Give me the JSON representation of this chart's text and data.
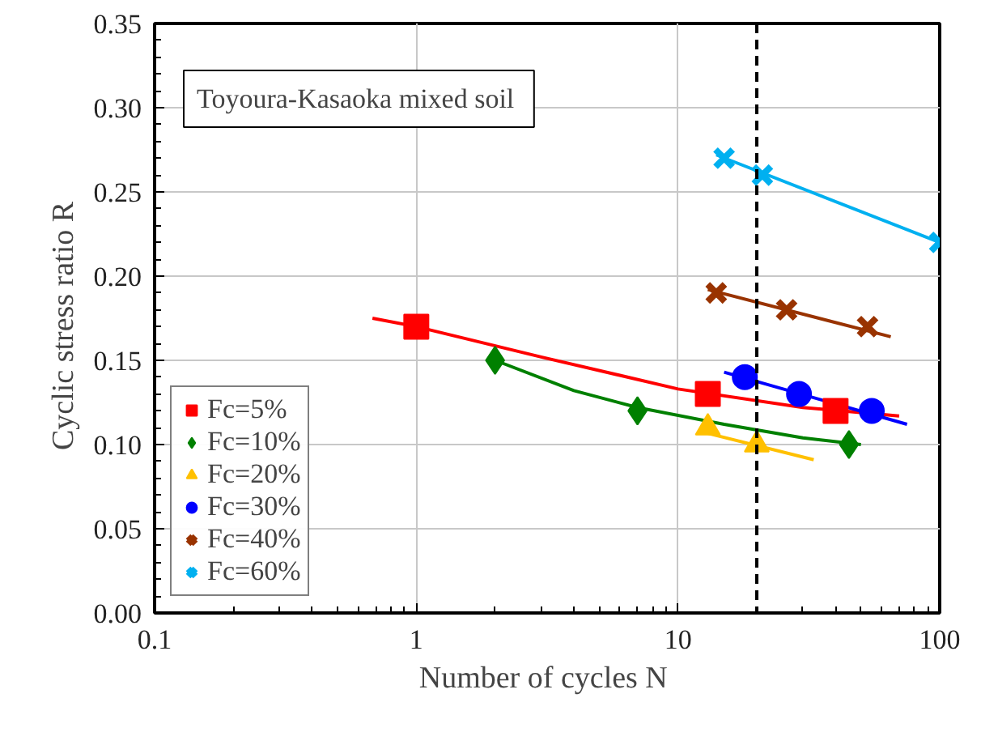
{
  "chart_data": {
    "type": "scatter",
    "xlabel": "Number of cycles  N",
    "ylabel": "Cyclic stress ratio   R",
    "annotations": [
      "Toyoura-Kasaoka  mixed soil"
    ],
    "log": "x",
    "xlim": [
      0.1,
      100
    ],
    "ylim": [
      0,
      0.35
    ],
    "xticks": [
      0.1,
      1,
      10,
      100
    ],
    "yticks": [
      {
        "value": 0,
        "label": "0.00"
      },
      {
        "value": 0.05,
        "label": "0.05"
      },
      {
        "value": 0.1,
        "label": "0.10"
      },
      {
        "value": 0.15,
        "label": "0.15"
      },
      {
        "value": 0.2,
        "label": "0.20"
      },
      {
        "value": 0.25,
        "label": "0.25"
      },
      {
        "value": 0.3,
        "label": "0.30"
      },
      {
        "value": 0.35,
        "label": "0.35"
      }
    ],
    "grid": true,
    "legend": "bottom left",
    "ref_lines": [
      {
        "axis": "x",
        "value": 20,
        "color": "#000000",
        "line_style": "dashed"
      }
    ],
    "series": [
      {
        "name": "Fc=5%",
        "color": "#ff0000",
        "marker": "square",
        "x": [
          1,
          13,
          40
        ],
        "values": [
          0.17,
          0.13,
          0.12
        ]
      },
      {
        "name": "Fc=10%",
        "color": "#008000",
        "marker": "diamond",
        "x": [
          2,
          7,
          45
        ],
        "values": [
          0.15,
          0.12,
          0.1
        ]
      },
      {
        "name": "Fc=20%",
        "color": "#ffc000",
        "marker": "triangle",
        "x": [
          13,
          20
        ],
        "values": [
          0.11,
          0.1
        ]
      },
      {
        "name": "Fc=30%",
        "color": "#0000ff",
        "marker": "circle",
        "x": [
          18,
          29,
          55
        ],
        "values": [
          0.14,
          0.13,
          0.12
        ]
      },
      {
        "name": "Fc=40%",
        "color": "#993300",
        "marker": "cross",
        "x": [
          14,
          26,
          53
        ],
        "values": [
          0.19,
          0.18,
          0.17
        ]
      },
      {
        "name": "Fc=60%",
        "color": "#00b0f0",
        "marker": "cross",
        "x": [
          15,
          21,
          100
        ],
        "values": [
          0.27,
          0.26,
          0.22
        ]
      },
      {
        "type": "line",
        "color": "#ff0000",
        "marker": "none",
        "x": [
          0.68,
          1,
          3,
          10,
          30,
          70
        ],
        "values": [
          0.175,
          0.17,
          0.152,
          0.133,
          0.122,
          0.117
        ]
      },
      {
        "type": "line",
        "color": "#008000",
        "marker": "none",
        "x": [
          2,
          4,
          7,
          15,
          30,
          50
        ],
        "values": [
          0.15,
          0.132,
          0.122,
          0.112,
          0.104,
          0.1
        ]
      },
      {
        "type": "line",
        "color": "#ffc000",
        "marker": "none",
        "x": [
          12,
          33
        ],
        "values": [
          0.108,
          0.091
        ]
      },
      {
        "type": "line",
        "color": "#0000ff",
        "marker": "none",
        "x": [
          15,
          75
        ],
        "values": [
          0.143,
          0.112
        ]
      },
      {
        "type": "line",
        "color": "#993300",
        "marker": "none",
        "x": [
          13,
          65
        ],
        "values": [
          0.192,
          0.164
        ]
      },
      {
        "type": "line",
        "color": "#00b0f0",
        "marker": "none",
        "x": [
          14,
          100
        ],
        "values": [
          0.272,
          0.22
        ]
      }
    ]
  }
}
